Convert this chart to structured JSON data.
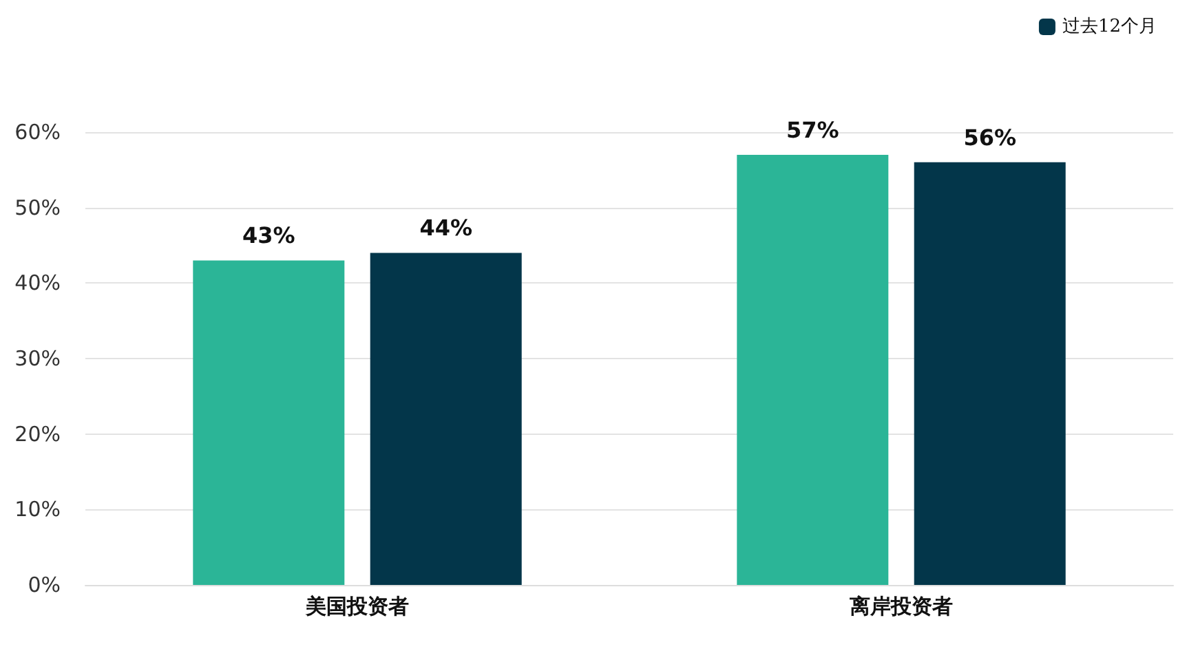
{
  "chart_data": {
    "type": "bar",
    "categories": [
      "美国投资者",
      "离岸投资者"
    ],
    "series": [
      {
        "color": "#2bb597",
        "values": [
          43,
          57
        ],
        "value_labels": [
          "43%",
          "57%"
        ]
      },
      {
        "name": "过去12个月",
        "color": "#03364a",
        "values": [
          44,
          56
        ],
        "value_labels": [
          "44%",
          "56%"
        ]
      }
    ],
    "ylim": [
      0,
      60
    ],
    "yticks": [
      {
        "value": 0,
        "label": "0%"
      },
      {
        "value": 10,
        "label": "10%"
      },
      {
        "value": 20,
        "label": "20%"
      },
      {
        "value": 30,
        "label": "30%"
      },
      {
        "value": 40,
        "label": "40%"
      },
      {
        "value": 50,
        "label": "50%"
      },
      {
        "value": 60,
        "label": "60%"
      }
    ],
    "grid": "y",
    "legend": "top right"
  }
}
